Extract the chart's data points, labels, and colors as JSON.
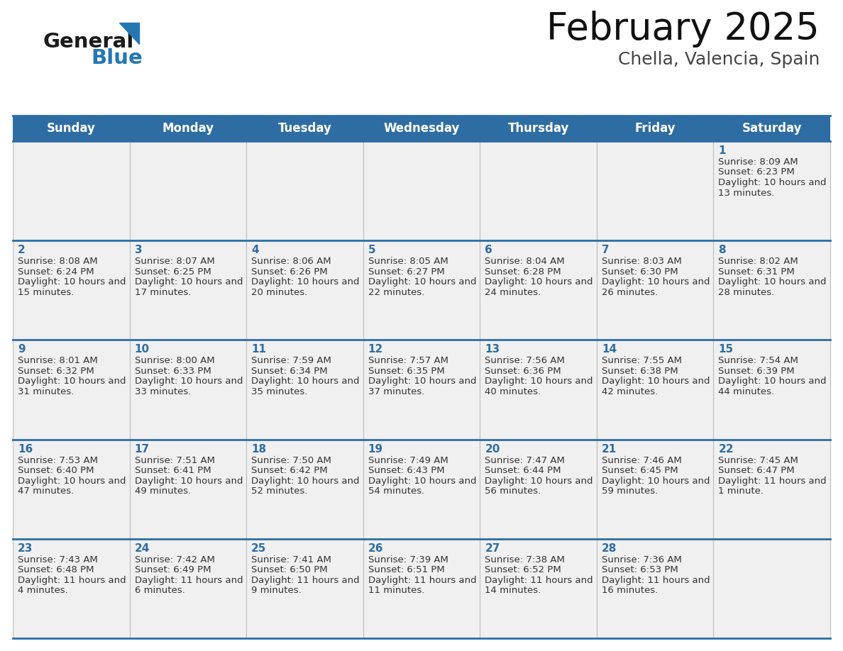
{
  "title": "February 2025",
  "subtitle": "Chella, Valencia, Spain",
  "header_bg": "#2E6DA4",
  "header_text_color": "#FFFFFF",
  "cell_bg": "#F0F0F0",
  "border_color": "#2E6DA4",
  "grid_color": "#BBBBBB",
  "day_names": [
    "Sunday",
    "Monday",
    "Tuesday",
    "Wednesday",
    "Thursday",
    "Friday",
    "Saturday"
  ],
  "text_color": "#333333",
  "date_color": "#2E6DA4",
  "logo_general_color": "#1a1a1a",
  "logo_blue_color": "#2477B3",
  "days": [
    {
      "date": 1,
      "col": 6,
      "row": 0,
      "sunrise": "8:09 AM",
      "sunset": "6:23 PM",
      "daylight": "10 hours and 13 minutes."
    },
    {
      "date": 2,
      "col": 0,
      "row": 1,
      "sunrise": "8:08 AM",
      "sunset": "6:24 PM",
      "daylight": "10 hours and 15 minutes."
    },
    {
      "date": 3,
      "col": 1,
      "row": 1,
      "sunrise": "8:07 AM",
      "sunset": "6:25 PM",
      "daylight": "10 hours and 17 minutes."
    },
    {
      "date": 4,
      "col": 2,
      "row": 1,
      "sunrise": "8:06 AM",
      "sunset": "6:26 PM",
      "daylight": "10 hours and 20 minutes."
    },
    {
      "date": 5,
      "col": 3,
      "row": 1,
      "sunrise": "8:05 AM",
      "sunset": "6:27 PM",
      "daylight": "10 hours and 22 minutes."
    },
    {
      "date": 6,
      "col": 4,
      "row": 1,
      "sunrise": "8:04 AM",
      "sunset": "6:28 PM",
      "daylight": "10 hours and 24 minutes."
    },
    {
      "date": 7,
      "col": 5,
      "row": 1,
      "sunrise": "8:03 AM",
      "sunset": "6:30 PM",
      "daylight": "10 hours and 26 minutes."
    },
    {
      "date": 8,
      "col": 6,
      "row": 1,
      "sunrise": "8:02 AM",
      "sunset": "6:31 PM",
      "daylight": "10 hours and 28 minutes."
    },
    {
      "date": 9,
      "col": 0,
      "row": 2,
      "sunrise": "8:01 AM",
      "sunset": "6:32 PM",
      "daylight": "10 hours and 31 minutes."
    },
    {
      "date": 10,
      "col": 1,
      "row": 2,
      "sunrise": "8:00 AM",
      "sunset": "6:33 PM",
      "daylight": "10 hours and 33 minutes."
    },
    {
      "date": 11,
      "col": 2,
      "row": 2,
      "sunrise": "7:59 AM",
      "sunset": "6:34 PM",
      "daylight": "10 hours and 35 minutes."
    },
    {
      "date": 12,
      "col": 3,
      "row": 2,
      "sunrise": "7:57 AM",
      "sunset": "6:35 PM",
      "daylight": "10 hours and 37 minutes."
    },
    {
      "date": 13,
      "col": 4,
      "row": 2,
      "sunrise": "7:56 AM",
      "sunset": "6:36 PM",
      "daylight": "10 hours and 40 minutes."
    },
    {
      "date": 14,
      "col": 5,
      "row": 2,
      "sunrise": "7:55 AM",
      "sunset": "6:38 PM",
      "daylight": "10 hours and 42 minutes."
    },
    {
      "date": 15,
      "col": 6,
      "row": 2,
      "sunrise": "7:54 AM",
      "sunset": "6:39 PM",
      "daylight": "10 hours and 44 minutes."
    },
    {
      "date": 16,
      "col": 0,
      "row": 3,
      "sunrise": "7:53 AM",
      "sunset": "6:40 PM",
      "daylight": "10 hours and 47 minutes."
    },
    {
      "date": 17,
      "col": 1,
      "row": 3,
      "sunrise": "7:51 AM",
      "sunset": "6:41 PM",
      "daylight": "10 hours and 49 minutes."
    },
    {
      "date": 18,
      "col": 2,
      "row": 3,
      "sunrise": "7:50 AM",
      "sunset": "6:42 PM",
      "daylight": "10 hours and 52 minutes."
    },
    {
      "date": 19,
      "col": 3,
      "row": 3,
      "sunrise": "7:49 AM",
      "sunset": "6:43 PM",
      "daylight": "10 hours and 54 minutes."
    },
    {
      "date": 20,
      "col": 4,
      "row": 3,
      "sunrise": "7:47 AM",
      "sunset": "6:44 PM",
      "daylight": "10 hours and 56 minutes."
    },
    {
      "date": 21,
      "col": 5,
      "row": 3,
      "sunrise": "7:46 AM",
      "sunset": "6:45 PM",
      "daylight": "10 hours and 59 minutes."
    },
    {
      "date": 22,
      "col": 6,
      "row": 3,
      "sunrise": "7:45 AM",
      "sunset": "6:47 PM",
      "daylight": "11 hours and 1 minute."
    },
    {
      "date": 23,
      "col": 0,
      "row": 4,
      "sunrise": "7:43 AM",
      "sunset": "6:48 PM",
      "daylight": "11 hours and 4 minutes."
    },
    {
      "date": 24,
      "col": 1,
      "row": 4,
      "sunrise": "7:42 AM",
      "sunset": "6:49 PM",
      "daylight": "11 hours and 6 minutes."
    },
    {
      "date": 25,
      "col": 2,
      "row": 4,
      "sunrise": "7:41 AM",
      "sunset": "6:50 PM",
      "daylight": "11 hours and 9 minutes."
    },
    {
      "date": 26,
      "col": 3,
      "row": 4,
      "sunrise": "7:39 AM",
      "sunset": "6:51 PM",
      "daylight": "11 hours and 11 minutes."
    },
    {
      "date": 27,
      "col": 4,
      "row": 4,
      "sunrise": "7:38 AM",
      "sunset": "6:52 PM",
      "daylight": "11 hours and 14 minutes."
    },
    {
      "date": 28,
      "col": 5,
      "row": 4,
      "sunrise": "7:36 AM",
      "sunset": "6:53 PM",
      "daylight": "11 hours and 16 minutes."
    }
  ]
}
